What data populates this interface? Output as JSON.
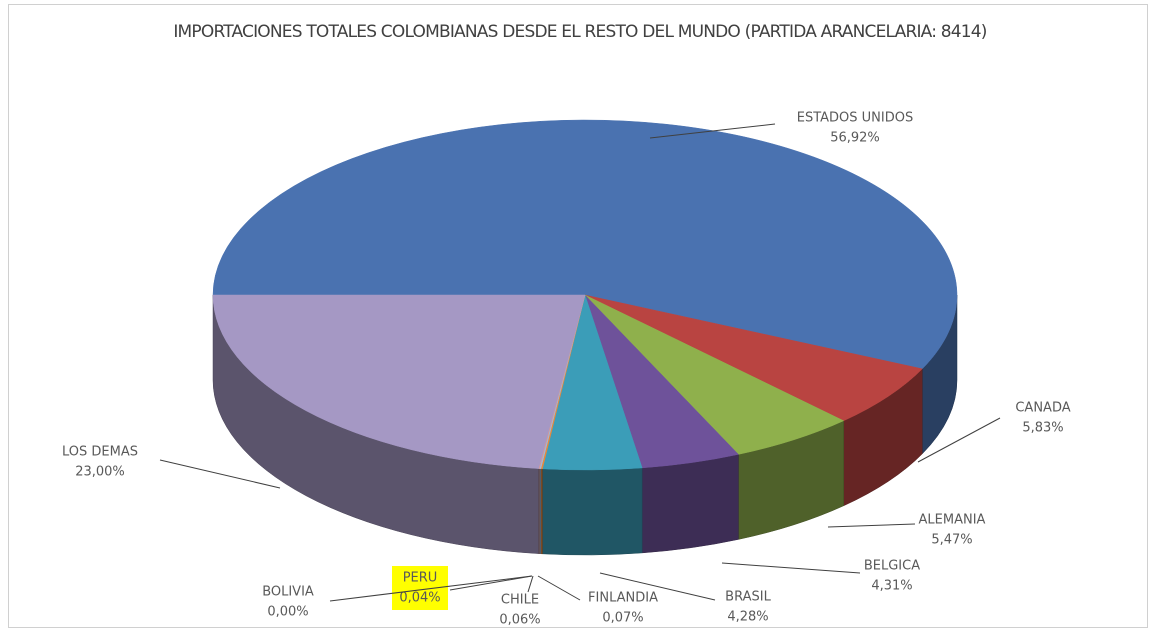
{
  "chart_data": {
    "type": "pie3d",
    "title": "IMPORTACIONES TOTALES COLOMBIANAS DESDE EL RESTO DEL MUNDO (PARTIDA ARANCELARIA: 8414)",
    "categories": [
      "ESTADOS UNIDOS",
      "CANADA",
      "ALEMANIA",
      "BELGICA",
      "BRASIL",
      "FINLANDIA",
      "CHILE",
      "PERU",
      "BOLIVIA",
      "LOS DEMAS"
    ],
    "values": [
      56.92,
      5.83,
      5.47,
      4.31,
      4.28,
      0.07,
      0.06,
      0.04,
      0.0,
      23.0
    ],
    "value_labels": [
      "56,92%",
      "5,83%",
      "5,47%",
      "4,31%",
      "4,28%",
      "0,07%",
      "0,06%",
      "0,04%",
      "0,00%",
      "23,00%"
    ],
    "colors": [
      "#4a72b0",
      "#b94441",
      "#8fb04c",
      "#6e529a",
      "#3b9db8",
      "#e8883a",
      "#9db8d8",
      "#d99694",
      "#c3d69b",
      "#a598c4"
    ]
  }
}
